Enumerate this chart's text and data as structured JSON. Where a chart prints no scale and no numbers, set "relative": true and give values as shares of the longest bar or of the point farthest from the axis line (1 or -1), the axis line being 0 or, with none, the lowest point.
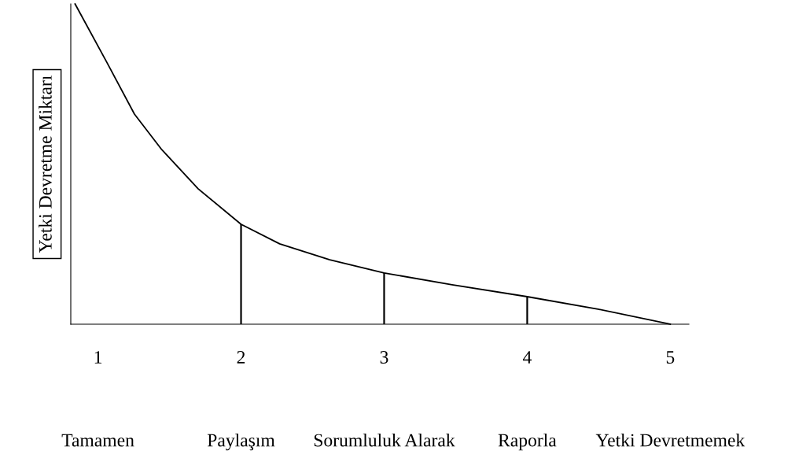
{
  "chart_data": {
    "type": "line",
    "relative": true,
    "ylabel": "Yetki Devretme Miktarı",
    "xlim": [
      0.81,
      5.13
    ],
    "xticks": [
      1,
      2,
      3,
      4,
      5
    ],
    "annotations": [
      "Tamamen",
      "Paylaşım",
      "Sorumluluk Alarak",
      "Raporla",
      "Yetki Devretmemek"
    ],
    "series": [
      {
        "color": "#000000",
        "x": [
          0.84,
          1.064,
          1.255,
          1.446,
          1.7,
          2.0,
          2.27,
          2.62,
          3.0,
          3.475,
          4.0,
          4.495,
          5.0
        ],
        "values": [
          1.0,
          0.816,
          0.656,
          0.545,
          0.423,
          0.312,
          0.251,
          0.201,
          0.16,
          0.123,
          0.086,
          0.047,
          0.0
        ]
      },
      {
        "type": "bar",
        "color": "#000000",
        "x": [
          2,
          3,
          4
        ],
        "values": [
          0.312,
          0.16,
          0.086
        ]
      }
    ],
    "marker": "none",
    "line_style": "solid",
    "grid": false,
    "legend": false
  }
}
